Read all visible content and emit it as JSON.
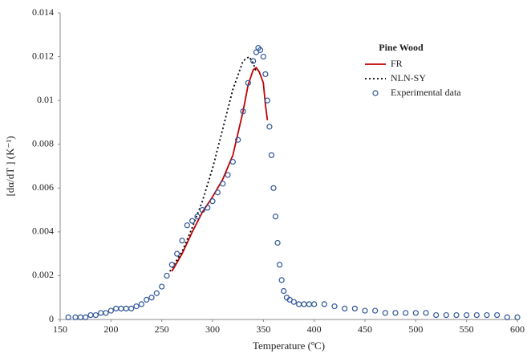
{
  "chart_data": {
    "type": "line",
    "legend_title": "Pine Wood",
    "xlabel": "Temperature (ºC)",
    "ylabel": "[dα/dT ] (K⁻¹)",
    "xlim": [
      150,
      600
    ],
    "xticks": [
      150,
      200,
      250,
      300,
      350,
      400,
      450,
      500,
      550,
      600
    ],
    "ylim": [
      0,
      0.014
    ],
    "yticks": [
      0,
      0.002,
      0.004,
      0.006,
      0.008,
      0.01,
      0.012,
      0.014
    ],
    "grid": false,
    "legend": "upper right",
    "series": [
      {
        "name": "FR",
        "color": "#c00000",
        "style": "solid",
        "x": [
          260,
          270,
          280,
          290,
          300,
          310,
          320,
          330,
          335,
          340,
          343,
          346,
          350,
          352,
          354
        ],
        "values": [
          0.0022,
          0.003,
          0.004,
          0.0049,
          0.0056,
          0.0064,
          0.0075,
          0.0095,
          0.0107,
          0.0114,
          0.0115,
          0.0113,
          0.0108,
          0.0098,
          0.0091
        ]
      },
      {
        "name": "NLN-SY",
        "color": "#000000",
        "style": "dotted",
        "x": [
          258,
          270,
          280,
          290,
          300,
          310,
          320,
          330,
          336,
          340,
          343
        ],
        "values": [
          0.0022,
          0.0031,
          0.0042,
          0.0054,
          0.0069,
          0.0087,
          0.0105,
          0.0118,
          0.012,
          0.0117,
          0.0113
        ]
      },
      {
        "name": "Experimental data",
        "color": "#2f5597",
        "style": "markers",
        "x": [
          158,
          165,
          170,
          175,
          180,
          185,
          190,
          195,
          200,
          205,
          210,
          215,
          220,
          225,
          230,
          235,
          240,
          245,
          250,
          255,
          260,
          265,
          270,
          275,
          280,
          285,
          290,
          295,
          300,
          305,
          310,
          315,
          320,
          325,
          330,
          335,
          340,
          343,
          345,
          347,
          350,
          352,
          354,
          356,
          358,
          360,
          362,
          364,
          366,
          368,
          370,
          373,
          376,
          380,
          385,
          390,
          395,
          400,
          410,
          420,
          430,
          440,
          450,
          460,
          470,
          480,
          490,
          500,
          510,
          520,
          530,
          540,
          550,
          560,
          570,
          580,
          590,
          600
        ],
        "values": [
          0.0001,
          0.0001,
          0.0001,
          0.0001,
          0.0002,
          0.0002,
          0.0003,
          0.0003,
          0.0004,
          0.0005,
          0.0005,
          0.0005,
          0.0005,
          0.0006,
          0.0007,
          0.0009,
          0.001,
          0.0012,
          0.0015,
          0.002,
          0.0025,
          0.003,
          0.0036,
          0.0043,
          0.0045,
          0.0047,
          0.005,
          0.0051,
          0.0054,
          0.0058,
          0.0062,
          0.0066,
          0.0072,
          0.0082,
          0.0095,
          0.0108,
          0.0118,
          0.0122,
          0.0124,
          0.0123,
          0.012,
          0.0112,
          0.01,
          0.0088,
          0.0075,
          0.006,
          0.0047,
          0.0035,
          0.0025,
          0.0018,
          0.0013,
          0.001,
          0.0009,
          0.0008,
          0.0007,
          0.0007,
          0.0007,
          0.0007,
          0.0007,
          0.0006,
          0.0005,
          0.0005,
          0.0004,
          0.0004,
          0.0003,
          0.0003,
          0.0003,
          0.0003,
          0.0003,
          0.0002,
          0.0002,
          0.0002,
          0.0002,
          0.0002,
          0.0002,
          0.0002,
          0.0001,
          0.0001
        ]
      }
    ]
  }
}
